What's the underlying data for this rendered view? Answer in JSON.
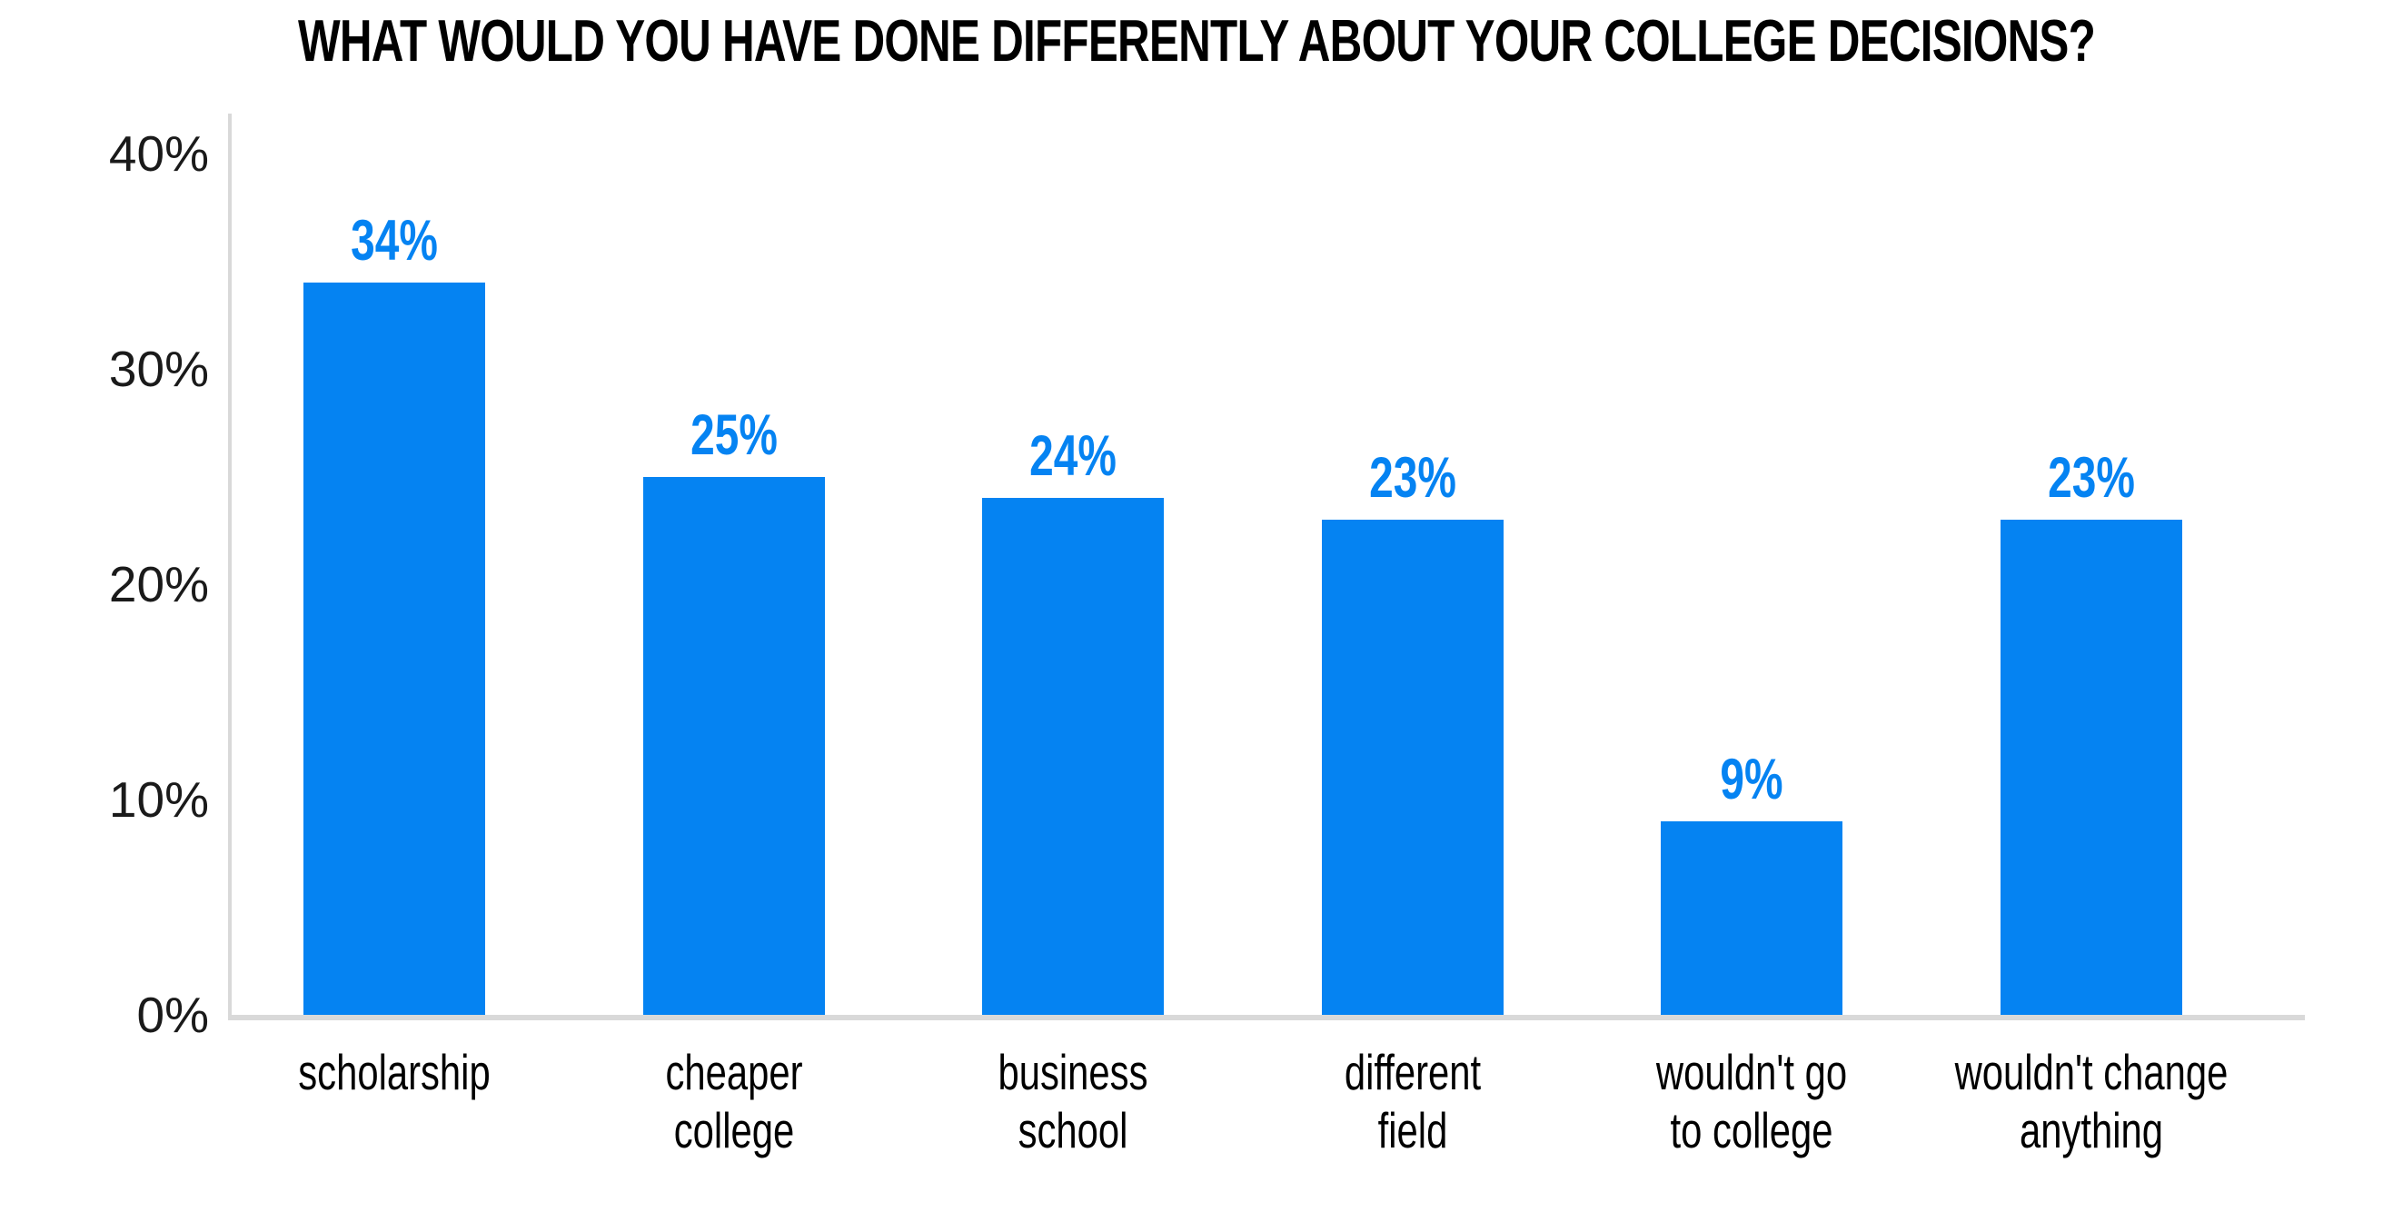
{
  "chart_data": {
    "type": "bar",
    "title": "WHAT WOULD YOU HAVE DONE DIFFERENTLY ABOUT YOUR COLLEGE DECISIONS?",
    "categories": [
      "scholarship",
      "cheaper\ncollege",
      "business\nschool",
      "different\nfield",
      "wouldn't go\nto college",
      "wouldn't change\nanything"
    ],
    "values": [
      34,
      25,
      24,
      23,
      9,
      23
    ],
    "data_labels": [
      "34%",
      "25%",
      "24%",
      "23%",
      "9%",
      "23%"
    ],
    "unit": "%",
    "xlabel": "",
    "ylabel": "",
    "ylim": [
      0,
      40
    ],
    "ytick_values": [
      40,
      30,
      20,
      10,
      0
    ],
    "ytick_labels": [
      "40%",
      "30%",
      "20%",
      "10%",
      "0%"
    ],
    "grid": false,
    "legend": "none",
    "colors": {
      "bar": "#0583F2",
      "value_label": "#0583F2",
      "axis_line": "#D9D9D9",
      "title_text": "#000000",
      "tick_text": "#1A1A1A",
      "category_text": "#000000",
      "background": "#FFFFFF"
    }
  }
}
